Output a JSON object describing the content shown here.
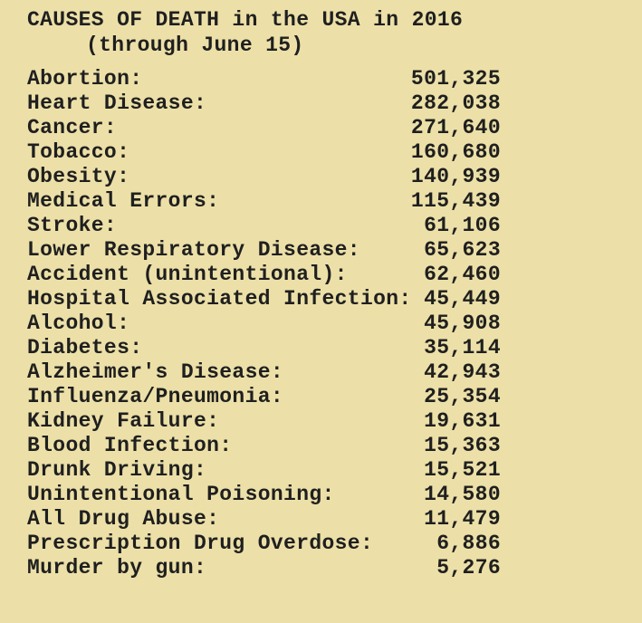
{
  "page": {
    "background_color": "#ece0a8",
    "text_color": "#1f1f1f"
  },
  "title": {
    "line1": "CAUSES OF DEATH in the USA in 2016",
    "line2": "(through June 15)"
  },
  "rows": [
    {
      "label": "Abortion:",
      "value": "501,325"
    },
    {
      "label": "Heart Disease:",
      "value": "282,038"
    },
    {
      "label": "Cancer:",
      "value": "271,640"
    },
    {
      "label": "Tobacco:",
      "value": "160,680"
    },
    {
      "label": "Obesity:",
      "value": "140,939"
    },
    {
      "label": "Medical Errors:",
      "value": "115,439"
    },
    {
      "label": "Stroke:",
      "value": "61,106"
    },
    {
      "label": "Lower Respiratory Disease:",
      "value": "65,623"
    },
    {
      "label": "Accident (unintentional):",
      "value": "62,460"
    },
    {
      "label": "Hospital Associated Infection:",
      "value": "45,449"
    },
    {
      "label": "Alcohol:",
      "value": "45,908"
    },
    {
      "label": "Diabetes:",
      "value": "35,114"
    },
    {
      "label": "Alzheimer's Disease:",
      "value": "42,943"
    },
    {
      "label": "Influenza/Pneumonia:",
      "value": "25,354"
    },
    {
      "label": "Kidney Failure:",
      "value": "19,631"
    },
    {
      "label": "Blood Infection:",
      "value": "15,363"
    },
    {
      "label": "Drunk Driving:",
      "value": "15,521"
    },
    {
      "label": "Unintentional Poisoning:",
      "value": "14,580"
    },
    {
      "label": "All Drug Abuse:",
      "value": "11,479"
    },
    {
      "label": "Prescription Drug Overdose:",
      "value": "6,886"
    },
    {
      "label": "Murder by gun:",
      "value": "5,276"
    }
  ]
}
